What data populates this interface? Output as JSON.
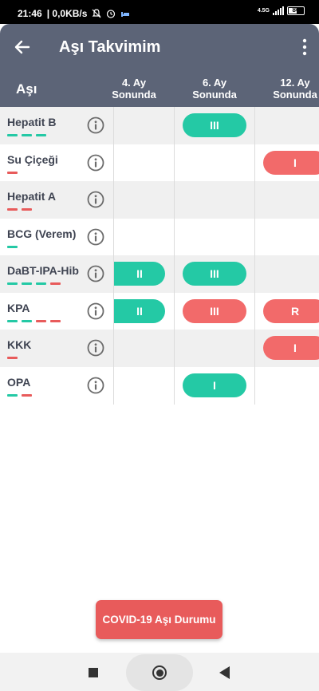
{
  "status_bar": {
    "time": "21:46",
    "net_speed": "| 0,0KB/s",
    "network_type": "4.5G",
    "battery": "86"
  },
  "app_bar": {
    "title": "Aşı Takvimim",
    "back_icon": "arrow-left-icon",
    "menu_icon": "more-vertical-icon"
  },
  "table": {
    "corner_label": "Aşı",
    "columns": [
      {
        "line1": "4. Ay",
        "line2": "Sonunda"
      },
      {
        "line1": "6. Ay",
        "line2": "Sonunda"
      },
      {
        "line1": "12. Ay",
        "line2": "Sonunda"
      }
    ],
    "rows": [
      {
        "name": "Hepatit B",
        "dashes": [
          "#24c9a5",
          "#24c9a5",
          "#24c9a5"
        ],
        "cells": [
          null,
          {
            "label": "III",
            "color": "#24c9a5"
          },
          null
        ]
      },
      {
        "name": "Su Çiçeği",
        "dashes": [
          "#e85b5b"
        ],
        "cells": [
          null,
          null,
          {
            "label": "I",
            "color": "#f26a6a"
          }
        ]
      },
      {
        "name": "Hepatit A",
        "dashes": [
          "#e85b5b",
          "#e85b5b"
        ],
        "cells": [
          null,
          null,
          null
        ]
      },
      {
        "name": "BCG (Verem)",
        "dashes": [
          "#24c9a5"
        ],
        "cells": [
          null,
          null,
          null
        ]
      },
      {
        "name": "DaBT-IPA-Hib",
        "dashes": [
          "#24c9a5",
          "#24c9a5",
          "#24c9a5",
          "#e85b5b"
        ],
        "cells": [
          {
            "label": "II",
            "color": "#24c9a5"
          },
          {
            "label": "III",
            "color": "#24c9a5"
          },
          null
        ]
      },
      {
        "name": "KPA",
        "dashes": [
          "#24c9a5",
          "#24c9a5",
          "#e85b5b",
          "#e85b5b"
        ],
        "cells": [
          {
            "label": "II",
            "color": "#24c9a5"
          },
          {
            "label": "III",
            "color": "#f26a6a"
          },
          {
            "label": "R",
            "color": "#f26a6a"
          }
        ]
      },
      {
        "name": "KKK",
        "dashes": [
          "#e85b5b"
        ],
        "cells": [
          null,
          null,
          {
            "label": "I",
            "color": "#f26a6a"
          }
        ]
      },
      {
        "name": "OPA",
        "dashes": [
          "#24c9a5",
          "#e85b5b"
        ],
        "cells": [
          null,
          {
            "label": "I",
            "color": "#24c9a5"
          },
          null
        ]
      }
    ]
  },
  "covid_button": {
    "label": "COVID-19 Aşı Durumu"
  },
  "colors": {
    "header": "#5c6477",
    "green": "#24c9a5",
    "red": "#e85b5b"
  }
}
